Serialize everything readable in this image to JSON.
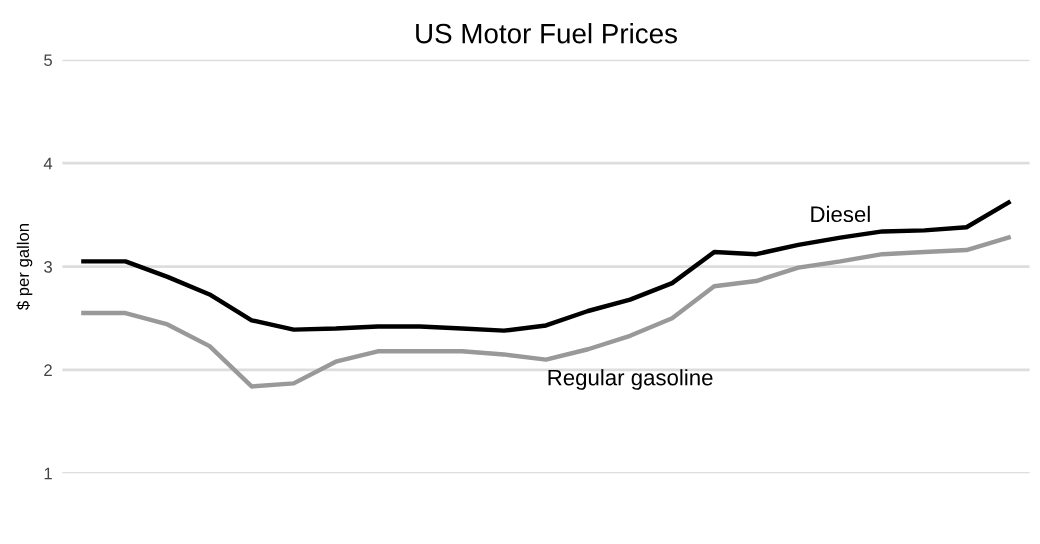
{
  "chart_data": {
    "type": "line",
    "title": "US Motor Fuel Prices",
    "ylabel": "$ per gallon",
    "categories": [
      null,
      null,
      null,
      null,
      null,
      null,
      null,
      null,
      null,
      null,
      null,
      null,
      null,
      null,
      null,
      null,
      null,
      null,
      null,
      null,
      null,
      null,
      null
    ],
    "series": [
      {
        "name": "Diesel",
        "color": "#000000",
        "values": [
          3.05,
          3.05,
          2.9,
          2.73,
          2.48,
          2.39,
          2.4,
          2.42,
          2.42,
          2.4,
          2.38,
          2.43,
          2.57,
          2.68,
          2.84,
          3.14,
          3.12,
          3.21,
          3.28,
          3.34,
          3.35,
          3.38,
          3.62
        ]
      },
      {
        "name": "Regular gasoline",
        "color": "#999999",
        "values": [
          2.55,
          2.55,
          2.44,
          2.23,
          1.84,
          1.87,
          2.08,
          2.18,
          2.18,
          2.18,
          2.15,
          2.1,
          2.2,
          2.33,
          2.5,
          2.81,
          2.86,
          2.99,
          3.05,
          3.12,
          3.14,
          3.16,
          3.28
        ]
      }
    ],
    "ylim": [
      1,
      5
    ],
    "yticks": [
      1,
      2,
      3,
      4,
      5
    ],
    "grid": "y",
    "legend": false,
    "marker": "none",
    "line_style": "solid"
  }
}
